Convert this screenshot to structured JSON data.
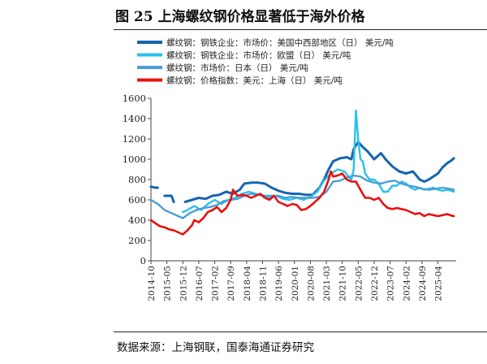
{
  "figure": {
    "title": "图 25  上海螺纹钢价格显著低于海外价格",
    "source": "数据来源：上海钢联，国泰海通证券研究"
  },
  "chart_data": {
    "type": "line",
    "ylim": [
      0,
      1600
    ],
    "yticks": [
      0,
      200,
      400,
      600,
      800,
      1000,
      1200,
      1400,
      1600
    ],
    "xlim": [
      "2014-10",
      "2025-12"
    ],
    "xticks": [
      "2014-10",
      "2015-05",
      "2015-12",
      "2016-07",
      "2017-02",
      "2017-09",
      "2018-04",
      "2018-11",
      "2019-06",
      "2020-01",
      "2020-08",
      "2021-03",
      "2021-10",
      "2022-05",
      "2022-12",
      "2023-07",
      "2024-02",
      "2024-09",
      "2025-04"
    ],
    "legend_position": "top",
    "grid": false,
    "series": [
      {
        "name": "螺纹钢：钢铁企业：市场价：美国中西部地区（日）  美元/吨",
        "color": "#1565b0",
        "x": [
          "2014-10",
          "2014-12",
          "2015-01",
          "2015-02",
          "2015-04",
          "2015-07",
          "2015-08",
          "2015-11",
          "2016-01",
          "2016-04",
          "2016-07",
          "2016-10",
          "2017-01",
          "2017-04",
          "2017-07",
          "2017-10",
          "2018-01",
          "2018-03",
          "2018-06",
          "2018-09",
          "2018-12",
          "2019-03",
          "2019-06",
          "2019-09",
          "2019-12",
          "2020-03",
          "2020-06",
          "2020-09",
          "2020-12",
          "2021-02",
          "2021-04",
          "2021-06",
          "2021-09",
          "2021-12",
          "2022-02",
          "2022-03",
          "2022-05",
          "2022-07",
          "2022-09",
          "2022-12",
          "2023-03",
          "2023-05",
          "2023-08",
          "2023-11",
          "2024-02",
          "2024-05",
          "2024-08",
          "2024-10",
          "2024-12",
          "2025-02",
          "2025-04",
          "2025-06",
          "2025-08",
          "2025-10",
          "2025-11"
        ],
        "y": [
          730,
          720,
          720,
          null,
          640,
          640,
          580,
          null,
          580,
          600,
          620,
          610,
          640,
          650,
          680,
          660,
          700,
          760,
          770,
          770,
          760,
          720,
          690,
          670,
          660,
          660,
          650,
          650,
          720,
          800,
          900,
          980,
          1010,
          1020,
          1000,
          1100,
          1170,
          1120,
          1080,
          1000,
          1060,
          1000,
          930,
          880,
          860,
          880,
          800,
          780,
          800,
          830,
          860,
          920,
          960,
          990,
          1010
        ]
      },
      {
        "name": "螺纹钢：钢铁企业：市场价：欧盟（日）  美元/吨",
        "color": "#29c1ec",
        "x": [
          "2015-12",
          "2016-02",
          "2016-05",
          "2016-08",
          "2016-11",
          "2017-02",
          "2017-05",
          "2017-08",
          "2017-11",
          "2018-02",
          "2018-05",
          "2018-08",
          "2018-11",
          "2019-02",
          "2019-05",
          "2019-08",
          "2019-11",
          "2020-02",
          "2020-05",
          "2020-08",
          "2020-11",
          "2021-02",
          "2021-05",
          "2021-08",
          "2021-11",
          "2022-01",
          "2022-02",
          "2022-03",
          "2022-04",
          "2022-05",
          "2022-06",
          "2022-07",
          "2022-08",
          "2022-10",
          "2022-12",
          "2023-02",
          "2023-04",
          "2023-06",
          "2023-08",
          "2023-10",
          "2023-12",
          "2024-02",
          "2024-04",
          "2024-06",
          "2024-08",
          "2024-10",
          "2024-12",
          "2025-02",
          "2025-04",
          "2025-06",
          "2025-08",
          "2025-10",
          "2025-11"
        ],
        "y": [
          480,
          500,
          540,
          500,
          560,
          600,
          560,
          600,
          620,
          660,
          680,
          660,
          640,
          620,
          640,
          610,
          600,
          620,
          600,
          630,
          680,
          790,
          860,
          900,
          880,
          820,
          800,
          900,
          1480,
          1200,
          1000,
          980,
          860,
          800,
          800,
          760,
          680,
          680,
          740,
          740,
          780,
          760,
          720,
          700,
          720,
          700,
          710,
          720,
          700,
          690,
          700,
          690,
          680
        ]
      },
      {
        "name": "螺纹钢：市场价：日本（日）  美元/吨",
        "color": "#4a9ed6",
        "x": [
          "2014-10",
          "2015-01",
          "2015-04",
          "2015-07",
          "2015-10",
          "2015-12",
          "2016-03",
          "2016-06",
          "2016-09",
          "2016-12",
          "2017-03",
          "2017-06",
          "2017-09",
          "2017-12",
          "2018-03",
          "2018-06",
          "2018-09",
          "2018-12",
          "2019-03",
          "2019-06",
          "2019-09",
          "2019-12",
          "2020-03",
          "2020-06",
          "2020-09",
          "2020-12",
          "2021-03",
          "2021-06",
          "2021-09",
          "2021-12",
          "2022-03",
          "2022-06",
          "2022-09",
          "2022-12",
          "2023-03",
          "2023-06",
          "2023-09",
          "2023-12",
          "2024-03",
          "2024-06",
          "2024-09",
          "2024-12",
          "2025-03",
          "2025-06",
          "2025-09",
          "2025-11"
        ],
        "y": [
          600,
          560,
          500,
          470,
          440,
          420,
          470,
          500,
          520,
          530,
          550,
          590,
          600,
          610,
          640,
          660,
          650,
          640,
          640,
          640,
          620,
          630,
          620,
          620,
          620,
          630,
          680,
          780,
          790,
          820,
          840,
          830,
          790,
          770,
          760,
          780,
          790,
          760,
          740,
          730,
          710,
          700,
          710,
          720,
          710,
          700
        ]
      },
      {
        "name": "螺纹钢：价格指数：美元：上海（日）  美元/吨",
        "color": "#e8100e",
        "x": [
          "2014-10",
          "2014-12",
          "2015-02",
          "2015-04",
          "2015-06",
          "2015-08",
          "2015-10",
          "2015-12",
          "2016-02",
          "2016-04",
          "2016-05",
          "2016-07",
          "2016-09",
          "2016-11",
          "2017-01",
          "2017-03",
          "2017-05",
          "2017-07",
          "2017-09",
          "2017-10",
          "2017-12",
          "2018-02",
          "2018-04",
          "2018-06",
          "2018-08",
          "2018-10",
          "2018-12",
          "2019-02",
          "2019-04",
          "2019-06",
          "2019-08",
          "2019-10",
          "2019-12",
          "2020-02",
          "2020-04",
          "2020-06",
          "2020-08",
          "2020-10",
          "2020-12",
          "2021-02",
          "2021-04",
          "2021-05",
          "2021-06",
          "2021-08",
          "2021-10",
          "2021-12",
          "2022-02",
          "2022-04",
          "2022-06",
          "2022-08",
          "2022-10",
          "2022-12",
          "2023-02",
          "2023-04",
          "2023-06",
          "2023-08",
          "2023-10",
          "2023-12",
          "2024-02",
          "2024-04",
          "2024-06",
          "2024-08",
          "2024-10",
          "2024-12",
          "2025-02",
          "2025-04",
          "2025-06",
          "2025-08",
          "2025-10",
          "2025-11"
        ],
        "y": [
          400,
          370,
          340,
          330,
          310,
          300,
          280,
          260,
          300,
          350,
          400,
          380,
          420,
          480,
          500,
          530,
          480,
          520,
          600,
          700,
          640,
          650,
          640,
          620,
          640,
          660,
          620,
          600,
          640,
          580,
          560,
          540,
          560,
          550,
          500,
          510,
          540,
          580,
          620,
          680,
          800,
          880,
          830,
          840,
          860,
          800,
          780,
          780,
          700,
          620,
          620,
          600,
          620,
          560,
          520,
          510,
          520,
          510,
          500,
          480,
          460,
          470,
          440,
          460,
          450,
          440,
          450,
          460,
          445,
          440
        ]
      }
    ]
  }
}
